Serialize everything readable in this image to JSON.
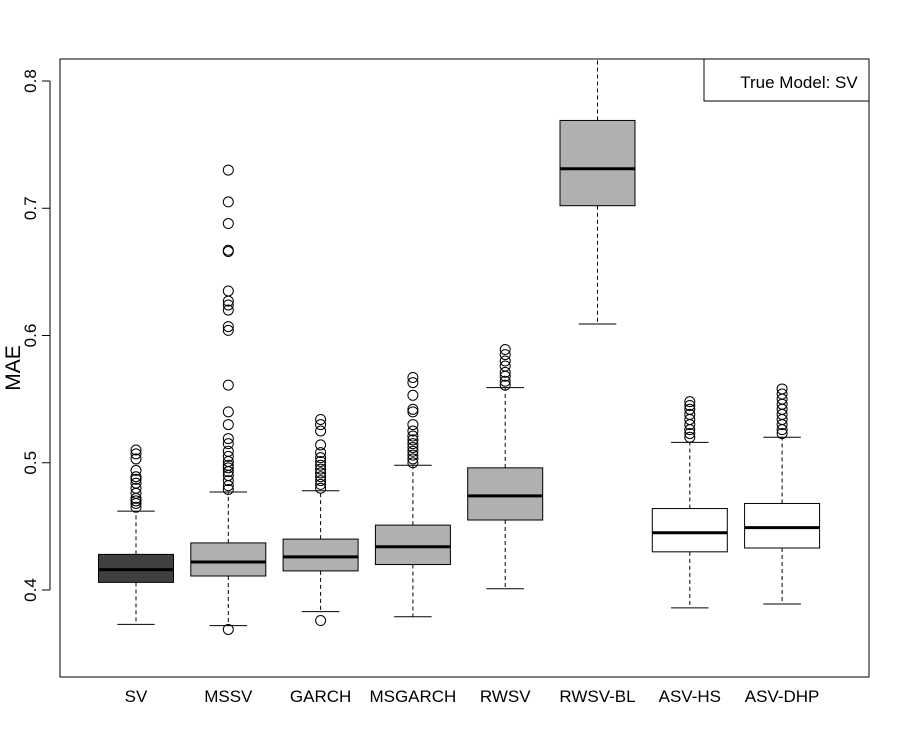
{
  "chart_data": {
    "type": "boxplot",
    "title": "",
    "xlabel": "",
    "ylabel": "MAE",
    "ylim": [
      0.333,
      0.82
    ],
    "yticks": [
      0.4,
      0.5,
      0.6,
      0.7,
      0.8
    ],
    "ytick_labels": [
      "0.4",
      "0.5",
      "0.6",
      "0.7",
      "0.8"
    ],
    "legend": {
      "text": "True Model: SV",
      "position": "top-right"
    },
    "categories": [
      "SV",
      "MSSV",
      "GARCH",
      "MSGARCH",
      "RWSV",
      "RWSV-BL",
      "ASV-HS",
      "ASV-DHP"
    ],
    "colors": {
      "SV": "#404040",
      "competitor": "#b0b0b0",
      "proposed": "#ffffff"
    },
    "boxes": [
      {
        "name": "SV",
        "group": "SV",
        "whisker_low": 0.373,
        "q1": 0.406,
        "median": 0.416,
        "q3": 0.428,
        "whisker_high": 0.462,
        "outliers": [
          0.465,
          0.468,
          0.47,
          0.472,
          0.476,
          0.48,
          0.484,
          0.487,
          0.489,
          0.494,
          0.503,
          0.507,
          0.51
        ]
      },
      {
        "name": "MSSV",
        "group": "competitor",
        "whisker_low": 0.372,
        "q1": 0.411,
        "median": 0.422,
        "q3": 0.437,
        "whisker_high": 0.477,
        "outliers": [
          0.369,
          0.479,
          0.482,
          0.486,
          0.49,
          0.493,
          0.496,
          0.498,
          0.501,
          0.505,
          0.509,
          0.515,
          0.519,
          0.53,
          0.54,
          0.561,
          0.604,
          0.607,
          0.62,
          0.624,
          0.627,
          0.635,
          0.666,
          0.667,
          0.688,
          0.705,
          0.73
        ]
      },
      {
        "name": "GARCH",
        "group": "competitor",
        "whisker_low": 0.383,
        "q1": 0.415,
        "median": 0.426,
        "q3": 0.44,
        "whisker_high": 0.478,
        "outliers": [
          0.376,
          0.48,
          0.483,
          0.486,
          0.489,
          0.492,
          0.495,
          0.498,
          0.501,
          0.504,
          0.508,
          0.514,
          0.525,
          0.53,
          0.534
        ]
      },
      {
        "name": "MSGARCH",
        "group": "competitor",
        "whisker_low": 0.379,
        "q1": 0.42,
        "median": 0.434,
        "q3": 0.451,
        "whisker_high": 0.498,
        "outliers": [
          0.5,
          0.503,
          0.506,
          0.509,
          0.512,
          0.515,
          0.518,
          0.521,
          0.525,
          0.53,
          0.54,
          0.542,
          0.553,
          0.563,
          0.567
        ]
      },
      {
        "name": "RWSV",
        "group": "competitor",
        "whisker_low": 0.401,
        "q1": 0.455,
        "median": 0.474,
        "q3": 0.496,
        "whisker_high": 0.559,
        "outliers": [
          0.561,
          0.564,
          0.568,
          0.571,
          0.576,
          0.58,
          0.585,
          0.589
        ]
      },
      {
        "name": "RWSV-BL",
        "group": "competitor",
        "whisker_low": 0.609,
        "q1": 0.702,
        "median": 0.731,
        "q3": 0.769,
        "whisker_high": 0.82,
        "outliers": []
      },
      {
        "name": "ASV-HS",
        "group": "proposed",
        "whisker_low": 0.386,
        "q1": 0.43,
        "median": 0.445,
        "q3": 0.464,
        "whisker_high": 0.516,
        "outliers": [
          0.52,
          0.523,
          0.526,
          0.53,
          0.534,
          0.538,
          0.542,
          0.545,
          0.548
        ]
      },
      {
        "name": "ASV-DHP",
        "group": "proposed",
        "whisker_low": 0.389,
        "q1": 0.433,
        "median": 0.449,
        "q3": 0.468,
        "whisker_high": 0.52,
        "outliers": [
          0.523,
          0.526,
          0.53,
          0.534,
          0.538,
          0.542,
          0.546,
          0.55,
          0.554,
          0.558
        ]
      }
    ]
  }
}
